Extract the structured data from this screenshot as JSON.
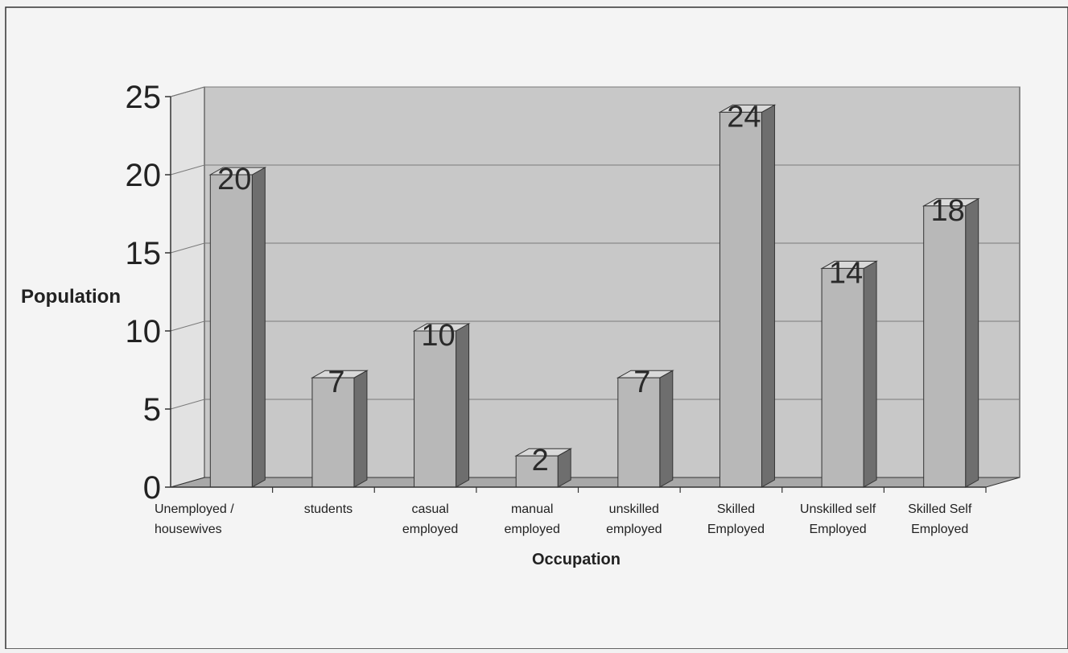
{
  "chart_data": {
    "type": "bar",
    "title": "",
    "xlabel": "Occupation",
    "ylabel": "Population",
    "ylim": [
      0,
      25
    ],
    "yticks": [
      0,
      5,
      10,
      15,
      20,
      25
    ],
    "categories": [
      [
        "Unemployed /",
        "housewives"
      ],
      [
        "students"
      ],
      [
        "casual",
        "employed"
      ],
      [
        "manual",
        "employed"
      ],
      [
        "unskilled",
        "employed"
      ],
      [
        "Skilled",
        "Employed"
      ],
      [
        "Unskilled self",
        "Employed"
      ],
      [
        "Skilled Self",
        "Employed"
      ]
    ],
    "values": [
      20,
      7,
      10,
      2,
      7,
      24,
      14,
      18
    ],
    "grid": true,
    "legend": "none",
    "style": "3d-column"
  },
  "colors": {
    "background": "#f2f2f2",
    "plot_back_wall": "#c8c8c8",
    "plot_floor": "#a8a8a8",
    "bar_front": "#b8b8b8",
    "bar_side": "#6e6e6e",
    "bar_top": "#d9d9d9",
    "grid": "#7a7a7a",
    "axis": "#333333",
    "text": "#222222"
  }
}
